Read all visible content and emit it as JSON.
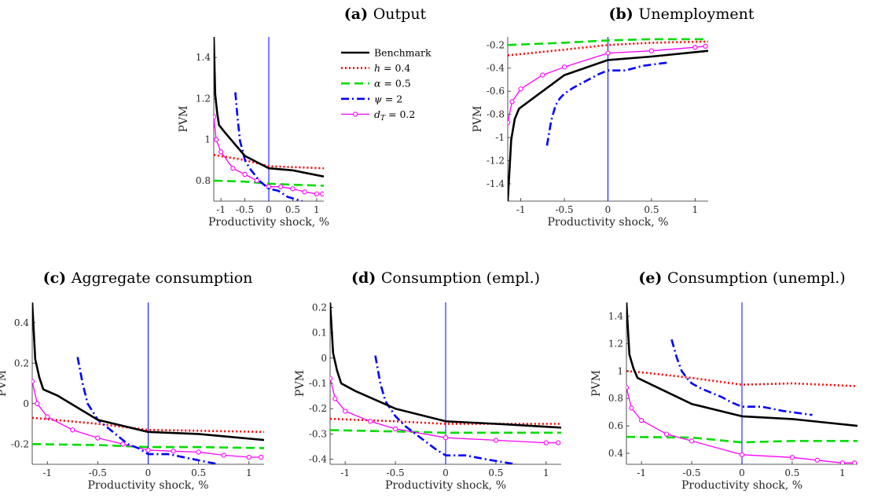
{
  "chart_data": [
    {
      "type": "line",
      "panel": "(a)",
      "title": "Output",
      "xlabel": "Productivity shock, %",
      "ylabel": "PVM",
      "xlim": [
        -1.15,
        1.15
      ],
      "ylim": [
        0.7,
        1.5
      ],
      "xticks": [
        -1,
        -0.5,
        0,
        0.5,
        1
      ],
      "yticks": [
        0.8,
        1,
        1.2,
        1.4
      ],
      "legend": "top-right",
      "series": [
        {
          "name": "Benchmark",
          "key": "bench",
          "x": [
            -1.15,
            -1.12,
            -1.08,
            -1.04,
            -0.9,
            -0.5,
            0,
            0.5,
            1.15
          ],
          "y": [
            1.5,
            1.22,
            1.13,
            1.07,
            1.03,
            0.92,
            0.86,
            0.85,
            0.82
          ]
        },
        {
          "name": "h = 0.4",
          "key": "h",
          "x": [
            -1.15,
            -0.5,
            0,
            1.15
          ],
          "y": [
            0.925,
            0.9,
            0.87,
            0.86
          ]
        },
        {
          "name": "α = 0.5",
          "key": "alpha",
          "x": [
            -1.15,
            -0.5,
            0,
            0.5,
            1.15
          ],
          "y": [
            0.8,
            0.795,
            0.785,
            0.78,
            0.775
          ]
        },
        {
          "name": "ψ = 2",
          "key": "psi",
          "x": [
            -0.7,
            -0.65,
            -0.6,
            -0.55,
            -0.5,
            -0.4,
            -0.3,
            -0.2,
            -0.1,
            0,
            0.2,
            0.4,
            0.7
          ],
          "y": [
            1.23,
            1.1,
            0.99,
            0.95,
            0.9,
            0.86,
            0.83,
            0.8,
            0.78,
            0.76,
            0.75,
            0.72,
            0.7
          ]
        },
        {
          "name": "d_T = 0.2",
          "key": "dT",
          "x": [
            -1.15,
            -1.1,
            -1.0,
            -0.75,
            -0.5,
            -0.25,
            0,
            0.25,
            0.5,
            0.75,
            1.0,
            1.12
          ],
          "y": [
            1.11,
            1.0,
            0.94,
            0.86,
            0.83,
            0.8,
            0.77,
            0.77,
            0.76,
            0.745,
            0.735,
            0.735
          ]
        }
      ]
    },
    {
      "type": "line",
      "panel": "(b)",
      "title": "Unemployment",
      "xlabel": "Productivity shock, %",
      "ylabel": "PVM",
      "xlim": [
        -1.15,
        1.15
      ],
      "ylim": [
        -1.55,
        -0.13
      ],
      "xticks": [
        -1,
        -0.5,
        0,
        0.5,
        1
      ],
      "yticks": [
        -1.4,
        -1.2,
        -1,
        -0.8,
        -0.6,
        -0.4,
        -0.2
      ],
      "series": [
        {
          "key": "bench",
          "x": [
            -1.15,
            -1.11,
            -1.07,
            -1.02,
            -0.5,
            0,
            0.5,
            1.15
          ],
          "y": [
            -1.55,
            -1.02,
            -0.84,
            -0.75,
            -0.46,
            -0.33,
            -0.3,
            -0.25
          ]
        },
        {
          "key": "h",
          "x": [
            -1.15,
            -0.5,
            0,
            0.5,
            1.15
          ],
          "y": [
            -0.29,
            -0.24,
            -0.2,
            -0.18,
            -0.17
          ]
        },
        {
          "key": "alpha",
          "x": [
            -1.15,
            -0.5,
            0,
            0.5,
            1.15
          ],
          "y": [
            -0.2,
            -0.18,
            -0.16,
            -0.15,
            -0.15
          ]
        },
        {
          "key": "psi",
          "x": [
            -0.7,
            -0.65,
            -0.6,
            -0.55,
            -0.5,
            -0.4,
            -0.3,
            -0.2,
            -0.1,
            0,
            0.2,
            0.4,
            0.7
          ],
          "y": [
            -1.07,
            -0.85,
            -0.72,
            -0.66,
            -0.62,
            -0.57,
            -0.53,
            -0.49,
            -0.45,
            -0.42,
            -0.42,
            -0.38,
            -0.35
          ]
        },
        {
          "key": "dT",
          "x": [
            -1.15,
            -1.1,
            -1.0,
            -0.75,
            -0.5,
            0,
            0.5,
            1.0,
            1.12
          ],
          "y": [
            -0.87,
            -0.69,
            -0.58,
            -0.46,
            -0.39,
            -0.27,
            -0.25,
            -0.22,
            -0.21
          ]
        }
      ]
    },
    {
      "type": "line",
      "panel": "(c)",
      "title": "Aggregate consumption",
      "xlabel": "Productivity shock, %",
      "ylabel": "PVM",
      "xlim": [
        -1.15,
        1.15
      ],
      "ylim": [
        -0.3,
        0.5
      ],
      "xticks": [
        -1,
        -0.5,
        0,
        0.5,
        1
      ],
      "yticks": [
        -0.2,
        0,
        0.2,
        0.4
      ],
      "series": [
        {
          "key": "bench",
          "x": [
            -1.15,
            -1.12,
            -1.08,
            -1.04,
            -0.9,
            -0.5,
            0,
            0.5,
            1.15
          ],
          "y": [
            0.5,
            0.22,
            0.13,
            0.07,
            0.04,
            -0.08,
            -0.14,
            -0.15,
            -0.18
          ]
        },
        {
          "key": "h",
          "x": [
            -1.15,
            -0.5,
            0,
            1.15
          ],
          "y": [
            -0.07,
            -0.1,
            -0.13,
            -0.14
          ]
        },
        {
          "key": "alpha",
          "x": [
            -1.15,
            -0.5,
            0,
            0.5,
            1.15
          ],
          "y": [
            -0.2,
            -0.205,
            -0.215,
            -0.215,
            -0.22
          ]
        },
        {
          "key": "psi",
          "x": [
            -0.7,
            -0.65,
            -0.6,
            -0.55,
            -0.5,
            -0.4,
            -0.3,
            -0.2,
            -0.1,
            0,
            0.2,
            0.4,
            0.7
          ],
          "y": [
            0.23,
            0.1,
            0.0,
            -0.04,
            -0.08,
            -0.12,
            -0.16,
            -0.2,
            -0.22,
            -0.25,
            -0.25,
            -0.27,
            -0.3
          ]
        },
        {
          "key": "dT",
          "x": [
            -1.15,
            -1.1,
            -1.0,
            -0.75,
            -0.5,
            -0.25,
            0,
            0.25,
            0.5,
            0.75,
            1.0,
            1.12
          ],
          "y": [
            0.11,
            0.0,
            -0.065,
            -0.13,
            -0.17,
            -0.2,
            -0.23,
            -0.235,
            -0.24,
            -0.255,
            -0.265,
            -0.265
          ]
        }
      ]
    },
    {
      "type": "line",
      "panel": "(d)",
      "title": "Consumption (empl.)",
      "xlabel": "Productivity shock, %",
      "ylabel": "PVM",
      "xlim": [
        -1.15,
        1.15
      ],
      "ylim": [
        -0.42,
        0.22
      ],
      "xticks": [
        -1,
        -0.5,
        0,
        0.5,
        1
      ],
      "yticks": [
        -0.4,
        -0.3,
        -0.2,
        -0.1,
        0,
        0.1,
        0.2
      ],
      "series": [
        {
          "key": "bench",
          "x": [
            -1.15,
            -1.12,
            -1.08,
            -1.04,
            -0.9,
            -0.5,
            0,
            0.5,
            1.15
          ],
          "y": [
            0.22,
            0.02,
            -0.05,
            -0.1,
            -0.13,
            -0.2,
            -0.25,
            -0.26,
            -0.275
          ]
        },
        {
          "key": "h",
          "x": [
            -1.15,
            -0.5,
            0,
            1.15
          ],
          "y": [
            -0.24,
            -0.25,
            -0.26,
            -0.26
          ]
        },
        {
          "key": "alpha",
          "x": [
            -1.15,
            -0.5,
            0,
            0.5,
            1.15
          ],
          "y": [
            -0.285,
            -0.29,
            -0.295,
            -0.295,
            -0.295
          ]
        },
        {
          "key": "psi",
          "x": [
            -0.7,
            -0.65,
            -0.6,
            -0.55,
            -0.5,
            -0.4,
            -0.3,
            -0.2,
            -0.1,
            0,
            0.2,
            0.4,
            0.7
          ],
          "y": [
            0.01,
            -0.1,
            -0.17,
            -0.2,
            -0.23,
            -0.27,
            -0.3,
            -0.33,
            -0.36,
            -0.385,
            -0.385,
            -0.4,
            -0.42
          ]
        },
        {
          "key": "dT",
          "x": [
            -1.15,
            -1.1,
            -1.0,
            -0.75,
            -0.5,
            0,
            0.5,
            1.0,
            1.12
          ],
          "y": [
            -0.08,
            -0.16,
            -0.21,
            -0.25,
            -0.28,
            -0.315,
            -0.325,
            -0.335,
            -0.335
          ]
        }
      ]
    },
    {
      "type": "line",
      "panel": "(e)",
      "title": "Consumption (unempl.)",
      "xlabel": "Productivity shock, %",
      "ylabel": "PVM",
      "xlim": [
        -1.15,
        1.15
      ],
      "ylim": [
        0.32,
        1.5
      ],
      "xticks": [
        -1,
        -0.5,
        0,
        0.5,
        1
      ],
      "yticks": [
        0.4,
        0.6,
        0.8,
        1,
        1.2,
        1.4
      ],
      "series": [
        {
          "key": "bench",
          "x": [
            -1.15,
            -1.12,
            -1.08,
            -1.04,
            -0.9,
            -0.5,
            0,
            0.5,
            1.15
          ],
          "y": [
            1.5,
            1.12,
            1.02,
            0.95,
            0.9,
            0.76,
            0.67,
            0.65,
            0.6
          ]
        },
        {
          "key": "h",
          "x": [
            -1.15,
            -1.0,
            -0.5,
            0,
            0.5,
            1.15
          ],
          "y": [
            1.0,
            0.99,
            0.95,
            0.9,
            0.91,
            0.89
          ]
        },
        {
          "key": "alpha",
          "x": [
            -1.15,
            -0.5,
            0,
            0.5,
            1.15
          ],
          "y": [
            0.52,
            0.515,
            0.48,
            0.49,
            0.49
          ]
        },
        {
          "key": "psi",
          "x": [
            -0.7,
            -0.65,
            -0.6,
            -0.55,
            -0.5,
            -0.4,
            -0.3,
            -0.2,
            -0.1,
            0,
            0.2,
            0.4,
            0.7
          ],
          "y": [
            1.23,
            1.1,
            1.0,
            0.95,
            0.91,
            0.87,
            0.84,
            0.81,
            0.77,
            0.74,
            0.74,
            0.71,
            0.68
          ]
        },
        {
          "key": "dT",
          "x": [
            -1.15,
            -1.1,
            -1.0,
            -0.75,
            -0.5,
            0,
            0.5,
            0.75,
            1.0,
            1.12
          ],
          "y": [
            0.88,
            0.73,
            0.64,
            0.54,
            0.49,
            0.39,
            0.37,
            0.35,
            0.33,
            0.33
          ]
        }
      ]
    }
  ],
  "styles": {
    "bench": {
      "color": "#000000",
      "dash": "",
      "marker": false
    },
    "h": {
      "color": "#ff0000",
      "dash": "2 3",
      "marker": false
    },
    "alpha": {
      "color": "#00dd00",
      "dash": "11 6",
      "marker": false
    },
    "psi": {
      "color": "#0000ff",
      "dash": "10 4 2 4",
      "marker": false
    },
    "dT": {
      "color": "#ff00ff",
      "dash": "",
      "marker": true
    }
  }
}
